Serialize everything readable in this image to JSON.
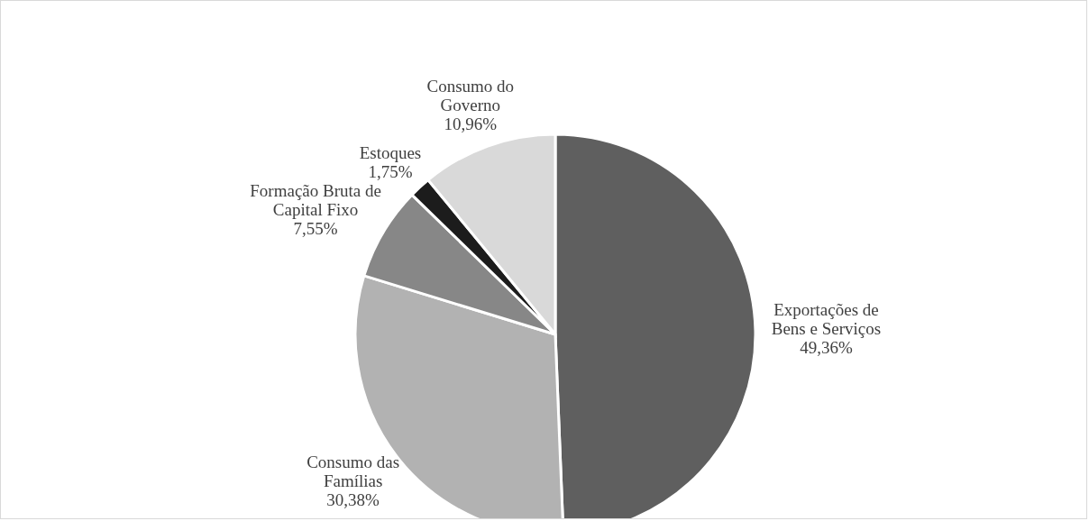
{
  "chart_data": {
    "type": "pie",
    "categories": [
      "Exportações de Bens e Serviços",
      "Consumo das Famílias",
      "Formação Bruta de Capital Fixo",
      "Estoques",
      "Consumo do Governo"
    ],
    "values": [
      49.36,
      30.38,
      7.55,
      1.75,
      10.96
    ],
    "colors": [
      "#5f5f5f",
      "#b2b2b2",
      "#878787",
      "#1c1c1c",
      "#d9d9d9"
    ],
    "value_labels": [
      "49,36%",
      "30,38%",
      "7,55%",
      "1,75%",
      "10,96%"
    ],
    "legend": false
  }
}
